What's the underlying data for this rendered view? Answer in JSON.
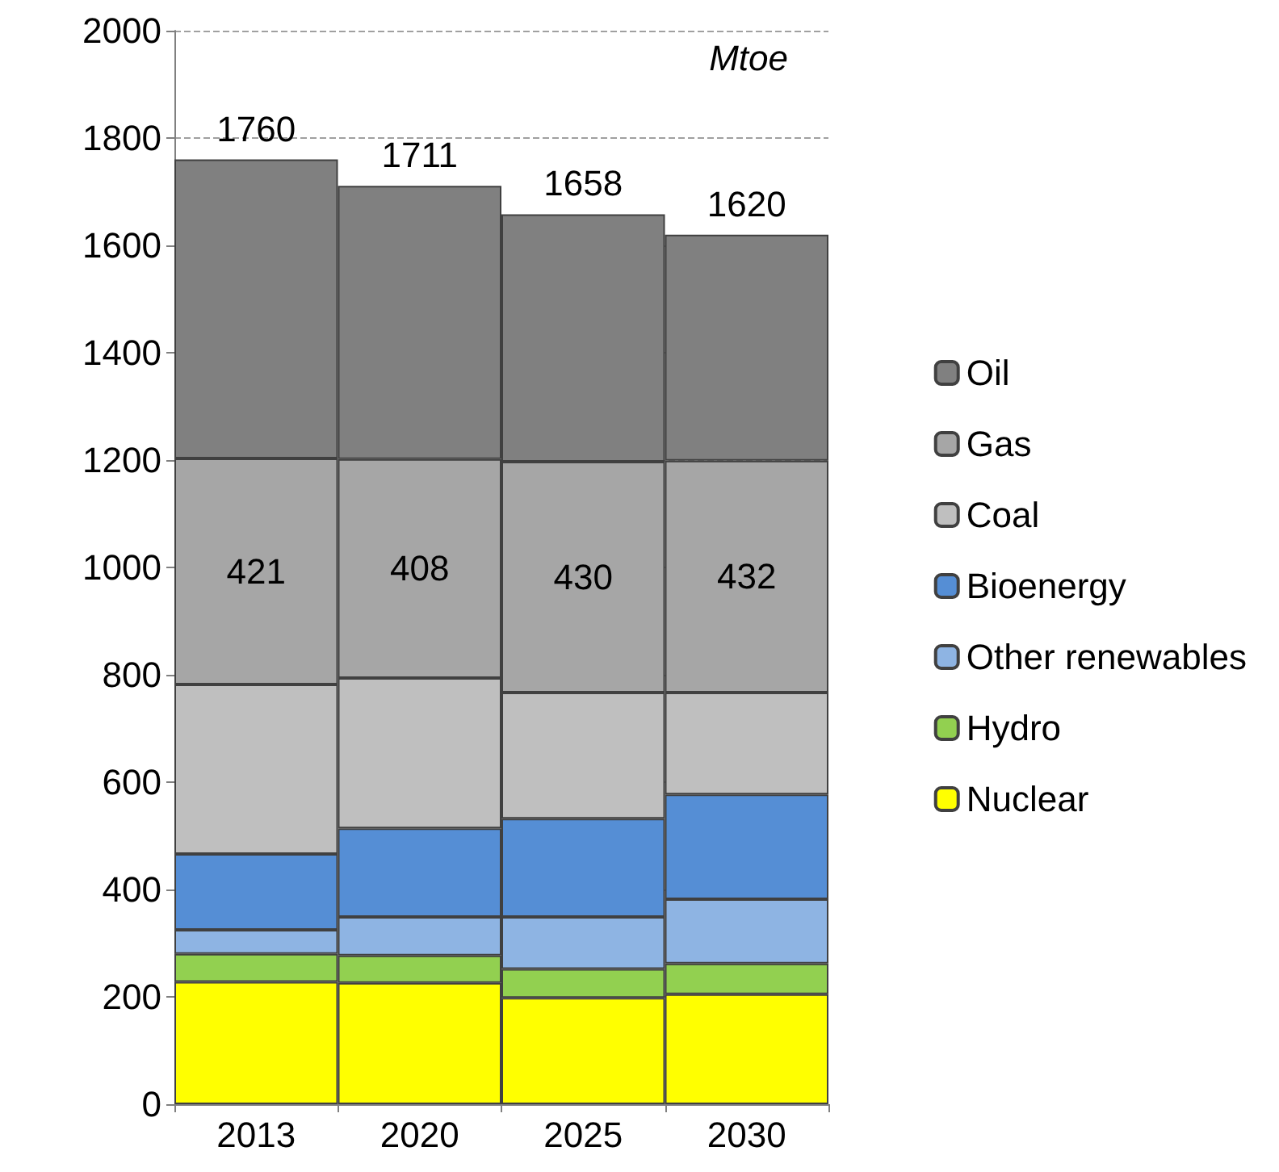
{
  "chart_data": {
    "type": "bar",
    "stacked": true,
    "categories": [
      "2013",
      "2020",
      "2025",
      "2030"
    ],
    "series": [
      {
        "name": "Nuclear",
        "color": "#ffff00",
        "values": [
          228,
          226,
          198,
          205
        ]
      },
      {
        "name": "Hydro",
        "color": "#92d050",
        "values": [
          52,
          51,
          54,
          57
        ]
      },
      {
        "name": "Other renewables",
        "color": "#8eb4e3",
        "values": [
          45,
          72,
          97,
          120
        ]
      },
      {
        "name": "Bioenergy",
        "color": "#558ed5",
        "values": [
          141,
          165,
          183,
          195
        ]
      },
      {
        "name": "Coal",
        "color": "#bfbfbf",
        "values": [
          316,
          280,
          235,
          190
        ]
      },
      {
        "name": "Gas",
        "color": "#a6a6a6",
        "values": [
          421,
          408,
          430,
          432
        ],
        "value_labels": [
          "421",
          "408",
          "430",
          "432"
        ]
      },
      {
        "name": "Oil",
        "color": "#808080",
        "values": [
          557,
          509,
          461,
          421
        ]
      }
    ],
    "totals": [
      "1760",
      "1711",
      "1658",
      "1620"
    ],
    "ylim": [
      0,
      2000
    ],
    "yticks": [
      0,
      200,
      400,
      600,
      800,
      1000,
      1200,
      1400,
      1600,
      1800,
      2000
    ],
    "grid": "y",
    "legend": "right",
    "annotations": [
      "Mtoe"
    ]
  }
}
